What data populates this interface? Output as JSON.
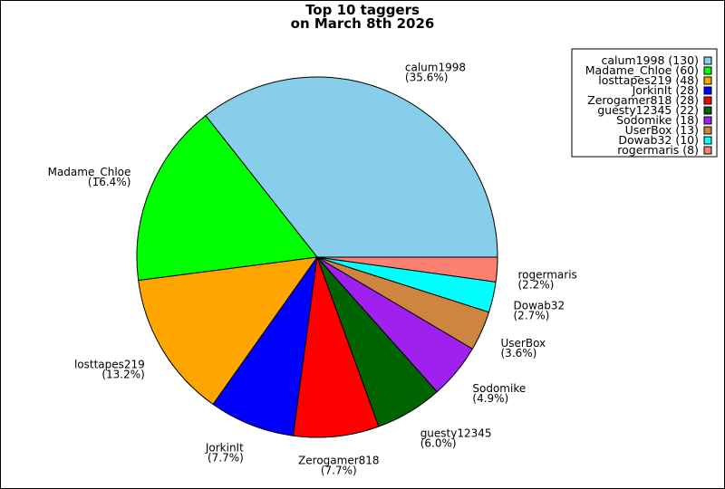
{
  "chart_data": {
    "type": "pie",
    "title": [
      "Top 10 taggers",
      "on March 8th 2026"
    ],
    "legend_position": "top-right",
    "slices": [
      {
        "name": "calum1998",
        "value": 130,
        "percent_label": "(35.6%)",
        "legend_label": "calum1998 (130)",
        "color": "#87ceeb"
      },
      {
        "name": "Madame_Chloe",
        "value": 60,
        "percent_label": "(16.4%)",
        "legend_label": "Madame_Chloe (60)",
        "color": "#00ff00"
      },
      {
        "name": "losttapes219",
        "value": 48,
        "percent_label": "(13.2%)",
        "legend_label": "losttapes219 (48)",
        "color": "#ffa500"
      },
      {
        "name": "JorkinIt",
        "value": 28,
        "percent_label": "(7.7%)",
        "legend_label": "JorkinIt (28)",
        "color": "#0000ff"
      },
      {
        "name": "Zerogamer818",
        "value": 28,
        "percent_label": "(7.7%)",
        "legend_label": "Zerogamer818 (28)",
        "color": "#ff0000"
      },
      {
        "name": "guesty12345",
        "value": 22,
        "percent_label": "(6.0%)",
        "legend_label": "guesty12345 (22)",
        "color": "#006400"
      },
      {
        "name": "Sodomike",
        "value": 18,
        "percent_label": "(4.9%)",
        "legend_label": "Sodomike (18)",
        "color": "#a020f0"
      },
      {
        "name": "UserBox",
        "value": 13,
        "percent_label": "(3.6%)",
        "legend_label": "UserBox (13)",
        "color": "#cd853f"
      },
      {
        "name": "Dowab32",
        "value": 10,
        "percent_label": "(2.7%)",
        "legend_label": "Dowab32 (10)",
        "color": "#00ffff"
      },
      {
        "name": "rogermaris",
        "value": 8,
        "percent_label": "(2.2%)",
        "legend_label": "rogermaris (8)",
        "color": "#fa8072"
      }
    ]
  }
}
